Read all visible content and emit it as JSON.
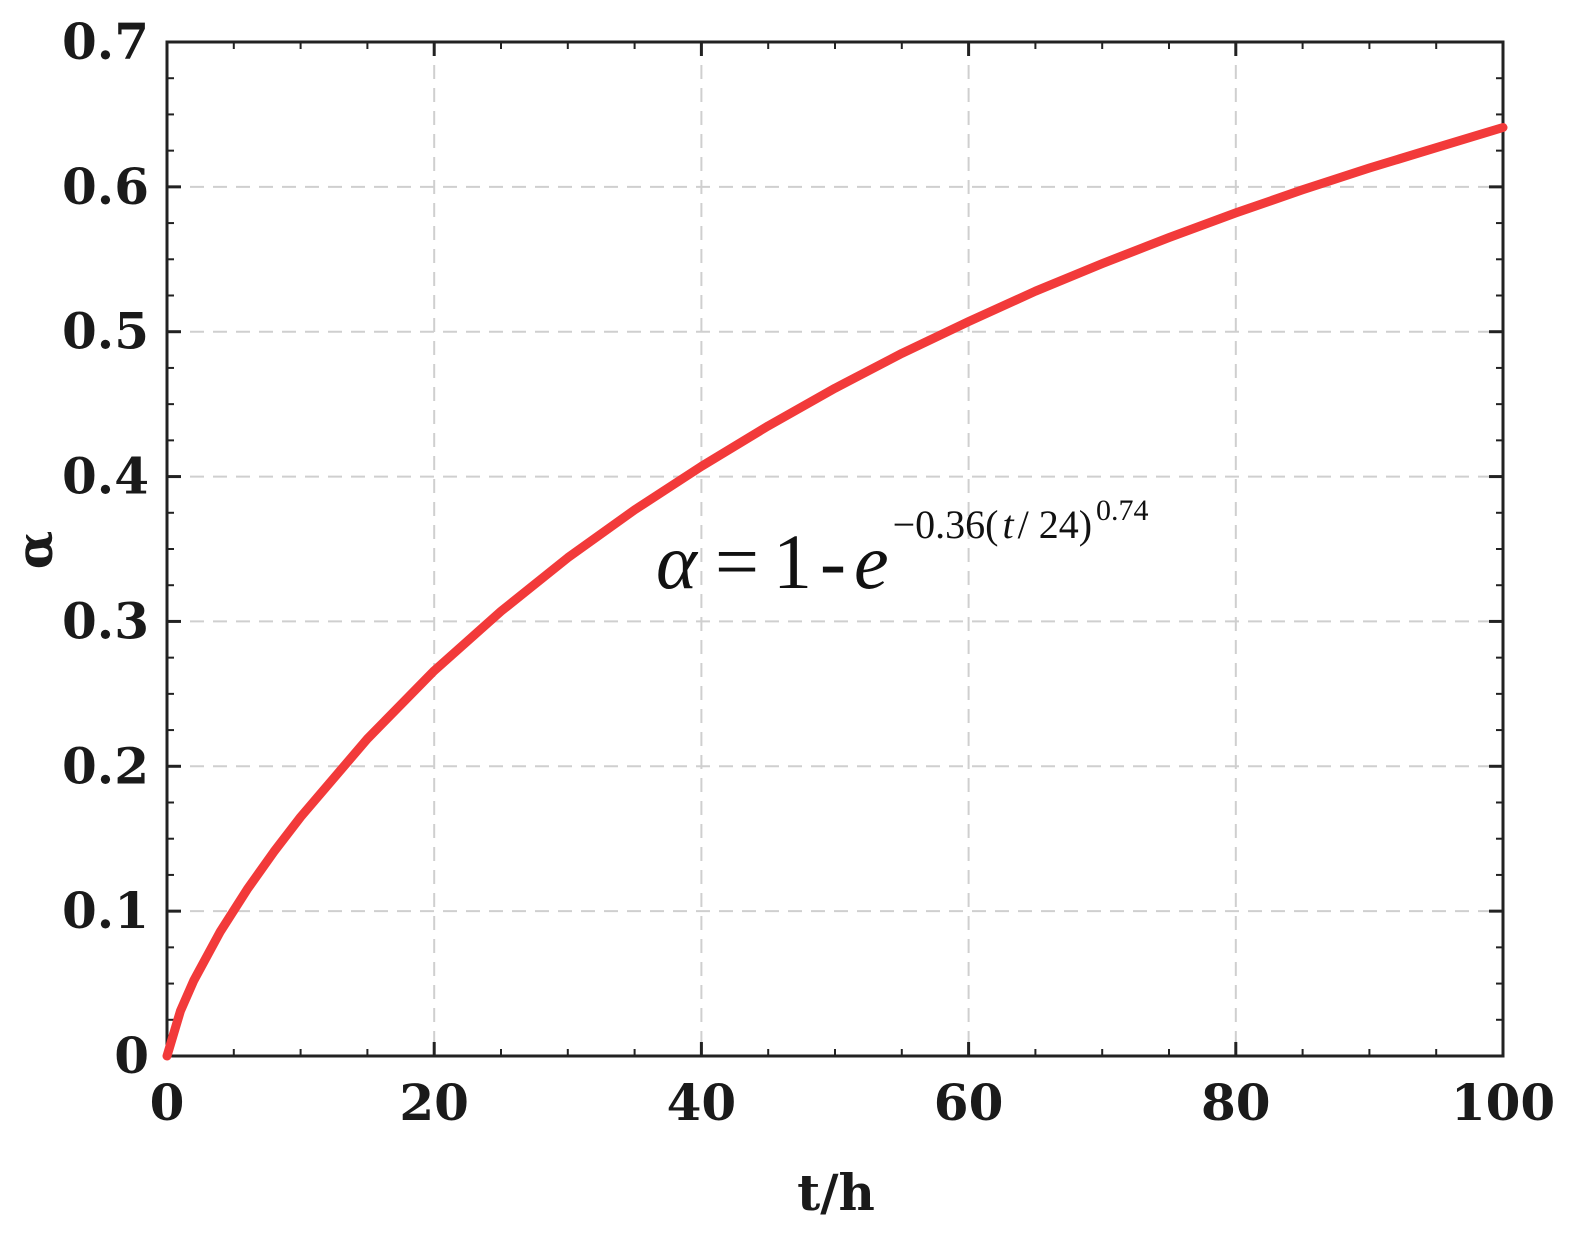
{
  "chart_data": {
    "type": "line",
    "xlabel": "t/h",
    "ylabel": "α",
    "xlim": [
      0,
      100
    ],
    "ylim": [
      0,
      0.7
    ],
    "x_ticks": [
      0,
      20,
      40,
      60,
      80,
      100
    ],
    "x_tick_labels": [
      "0",
      "20",
      "40",
      "60",
      "80",
      "100"
    ],
    "y_ticks": [
      0,
      0.1,
      0.2,
      0.3,
      0.4,
      0.5,
      0.6,
      0.7
    ],
    "y_tick_labels": [
      "0",
      "0.1",
      "0.2",
      "0.3",
      "0.4",
      "0.5",
      "0.6",
      "0.7"
    ],
    "grid": true,
    "grid_style": "dashed",
    "series": [
      {
        "color": "#f23a3a",
        "x": [
          0,
          1,
          2,
          4,
          6,
          8,
          10,
          15,
          20,
          25,
          30,
          35,
          40,
          45,
          50,
          55,
          60,
          65,
          70,
          75,
          80,
          85,
          90,
          95,
          100
        ],
        "y": [
          0,
          0.031,
          0.052,
          0.086,
          0.115,
          0.141,
          0.165,
          0.219,
          0.266,
          0.307,
          0.344,
          0.377,
          0.407,
          0.435,
          0.461,
          0.485,
          0.507,
          0.528,
          0.547,
          0.565,
          0.582,
          0.598,
          0.613,
          0.627,
          0.641
        ]
      }
    ],
    "annotation": {
      "lhs": "α",
      "eq": "=",
      "one": "1",
      "minus": "-",
      "e": "e",
      "exp_coef": "−0.36(",
      "exp_t": "t",
      "exp_rest": " / 24)",
      "exp_power": "0.74"
    }
  }
}
